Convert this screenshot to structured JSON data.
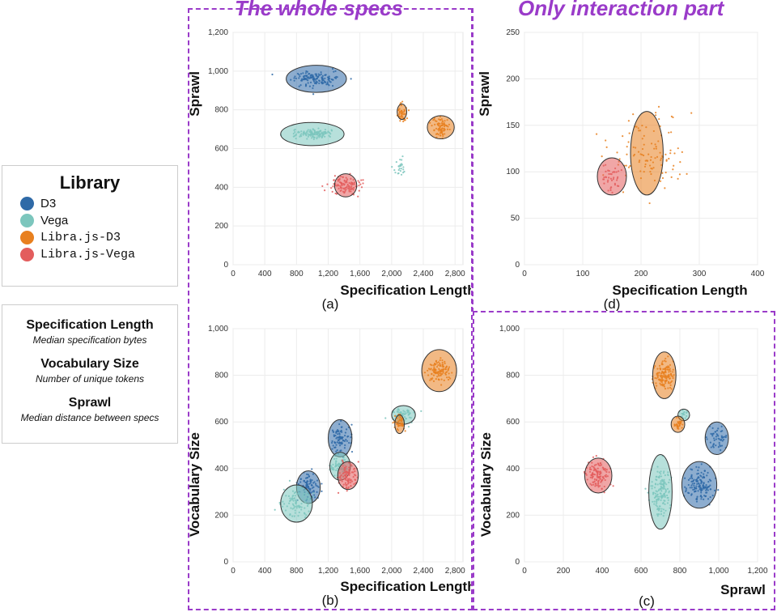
{
  "titles": {
    "left": "The whole specs",
    "right": "Only interaction part"
  },
  "legend": {
    "title": "Library",
    "items": [
      {
        "label": "D3",
        "color": "#2f6aa7",
        "mono": false
      },
      {
        "label": "Vega",
        "color": "#7cc6bd",
        "mono": false
      },
      {
        "label": "Libra.js-D3",
        "color": "#e8801f",
        "mono": true
      },
      {
        "label": "Libra.js-Vega",
        "color": "#e35d5d",
        "mono": true
      }
    ]
  },
  "definitions": [
    {
      "term": "Specification Length",
      "desc": "Median specification bytes"
    },
    {
      "term": "Vocabulary Size",
      "desc": "Number of unique tokens"
    },
    {
      "term": "Sprawl",
      "desc": "Median distance between specs"
    }
  ],
  "chart_data": [
    {
      "id": "a",
      "type": "scatter",
      "caption": "(a)",
      "xlabel": "Specification Length",
      "ylabel": "Sprawl",
      "xlim": [
        0,
        2900
      ],
      "ylim": [
        0,
        1200
      ],
      "xticks": [
        "0",
        "400",
        "800",
        "1,200",
        "1,600",
        "2,000",
        "2,400",
        "2,800"
      ],
      "xtickvals": [
        0,
        400,
        800,
        1200,
        1600,
        2000,
        2400,
        2800
      ],
      "yticks": [
        "0",
        "200",
        "400",
        "600",
        "800",
        "1,000",
        "1,200"
      ],
      "ytickvals": [
        0,
        200,
        400,
        600,
        800,
        1000,
        1200
      ],
      "series": [
        {
          "name": "D3",
          "color": "#2f6aa7",
          "clusters": [
            {
              "cx": 1050,
              "cy": 960,
              "sx": 220,
              "sy": 30,
              "n": 140,
              "rx": 380,
              "ry": 70
            }
          ]
        },
        {
          "name": "Vega",
          "color": "#7cc6bd",
          "clusters": [
            {
              "cx": 1000,
              "cy": 675,
              "sx": 230,
              "sy": 20,
              "n": 130,
              "rx": 400,
              "ry": 60
            },
            {
              "cx": 2100,
              "cy": 500,
              "sx": 60,
              "sy": 40,
              "n": 25,
              "rx": 0,
              "ry": 0
            }
          ]
        },
        {
          "name": "Libra.js-D3",
          "color": "#e8801f",
          "clusters": [
            {
              "cx": 2130,
              "cy": 790,
              "sx": 50,
              "sy": 40,
              "n": 40,
              "rx": 60,
              "ry": 40
            },
            {
              "cx": 2620,
              "cy": 710,
              "sx": 90,
              "sy": 40,
              "n": 80,
              "rx": 170,
              "ry": 60
            }
          ]
        },
        {
          "name": "Libra.js-Vega",
          "color": "#e35d5d",
          "clusters": [
            {
              "cx": 1420,
              "cy": 410,
              "sx": 150,
              "sy": 40,
              "n": 110,
              "rx": 140,
              "ry": 60
            }
          ]
        }
      ]
    },
    {
      "id": "d",
      "type": "scatter",
      "caption": "(d)",
      "xlabel": "Specification Length",
      "ylabel": "Sprawl",
      "xlim": [
        0,
        400
      ],
      "ylim": [
        0,
        250
      ],
      "xticks": [
        "0",
        "100",
        "200",
        "300",
        "400"
      ],
      "xtickvals": [
        0,
        100,
        200,
        300,
        400
      ],
      "yticks": [
        "0",
        "50",
        "100",
        "150",
        "200",
        "250"
      ],
      "ytickvals": [
        0,
        50,
        100,
        150,
        200,
        250
      ],
      "series": [
        {
          "name": "Libra.js-D3",
          "color": "#e8801f",
          "clusters": [
            {
              "cx": 210,
              "cy": 120,
              "sx": 50,
              "sy": 35,
              "n": 110,
              "rx": 28,
              "ry": 45
            }
          ]
        },
        {
          "name": "Libra.js-Vega",
          "color": "#e35d5d",
          "clusters": [
            {
              "cx": 150,
              "cy": 95,
              "sx": 15,
              "sy": 15,
              "n": 40,
              "rx": 25,
              "ry": 20
            }
          ]
        }
      ]
    },
    {
      "id": "b",
      "type": "scatter",
      "caption": "(b)",
      "xlabel": "Specification Length",
      "ylabel": "Vocabulary Size",
      "xlim": [
        0,
        2900
      ],
      "ylim": [
        0,
        1000
      ],
      "xticks": [
        "0",
        "400",
        "800",
        "1,200",
        "1,600",
        "2,000",
        "2,400",
        "2,800"
      ],
      "xtickvals": [
        0,
        400,
        800,
        1200,
        1600,
        2000,
        2400,
        2800
      ],
      "yticks": [
        "0",
        "200",
        "400",
        "600",
        "800",
        "1,000"
      ],
      "ytickvals": [
        0,
        200,
        400,
        600,
        800,
        1000
      ],
      "series": [
        {
          "name": "D3",
          "color": "#2f6aa7",
          "clusters": [
            {
              "cx": 1350,
              "cy": 530,
              "sx": 100,
              "sy": 50,
              "n": 90,
              "rx": 150,
              "ry": 80
            },
            {
              "cx": 950,
              "cy": 320,
              "sx": 100,
              "sy": 50,
              "n": 90,
              "rx": 150,
              "ry": 70
            }
          ]
        },
        {
          "name": "Vega",
          "color": "#7cc6bd",
          "clusters": [
            {
              "cx": 800,
              "cy": 250,
              "sx": 150,
              "sy": 50,
              "n": 80,
              "rx": 200,
              "ry": 80
            },
            {
              "cx": 1350,
              "cy": 410,
              "sx": 100,
              "sy": 30,
              "n": 60,
              "rx": 130,
              "ry": 60
            },
            {
              "cx": 2150,
              "cy": 630,
              "sx": 120,
              "sy": 25,
              "n": 60,
              "rx": 150,
              "ry": 40
            }
          ]
        },
        {
          "name": "Libra.js-D3",
          "color": "#e8801f",
          "clusters": [
            {
              "cx": 2600,
              "cy": 820,
              "sx": 120,
              "sy": 40,
              "n": 110,
              "rx": 220,
              "ry": 90
            },
            {
              "cx": 2100,
              "cy": 590,
              "sx": 50,
              "sy": 30,
              "n": 40,
              "rx": 60,
              "ry": 40
            }
          ]
        },
        {
          "name": "Libra.js-Vega",
          "color": "#e35d5d",
          "clusters": [
            {
              "cx": 1450,
              "cy": 370,
              "sx": 100,
              "sy": 50,
              "n": 90,
              "rx": 130,
              "ry": 60
            }
          ]
        }
      ]
    },
    {
      "id": "c",
      "type": "scatter",
      "caption": "(c)",
      "xlabel": "Sprawl",
      "ylabel": "Vocabulary Size",
      "xlim": [
        0,
        1200
      ],
      "ylim": [
        0,
        1000
      ],
      "xticks": [
        "0",
        "200",
        "400",
        "600",
        "800",
        "1,000",
        "1,200"
      ],
      "xtickvals": [
        0,
        200,
        400,
        600,
        800,
        1000,
        1200
      ],
      "yticks": [
        "0",
        "200",
        "400",
        "600",
        "800",
        "1,000"
      ],
      "ytickvals": [
        0,
        200,
        400,
        600,
        800,
        1000
      ],
      "series": [
        {
          "name": "D3",
          "color": "#2f6aa7",
          "clusters": [
            {
              "cx": 900,
              "cy": 330,
              "sx": 60,
              "sy": 60,
              "n": 140,
              "rx": 90,
              "ry": 100
            },
            {
              "cx": 990,
              "cy": 530,
              "sx": 40,
              "sy": 40,
              "n": 50,
              "rx": 60,
              "ry": 70
            }
          ]
        },
        {
          "name": "Vega",
          "color": "#7cc6bd",
          "clusters": [
            {
              "cx": 700,
              "cy": 300,
              "sx": 40,
              "sy": 90,
              "n": 150,
              "rx": 60,
              "ry": 160
            },
            {
              "cx": 820,
              "cy": 630,
              "sx": 20,
              "sy": 15,
              "n": 15,
              "rx": 30,
              "ry": 25
            }
          ]
        },
        {
          "name": "Libra.js-D3",
          "color": "#e8801f",
          "clusters": [
            {
              "cx": 720,
              "cy": 800,
              "sx": 40,
              "sy": 50,
              "n": 130,
              "rx": 60,
              "ry": 100
            },
            {
              "cx": 790,
              "cy": 590,
              "sx": 20,
              "sy": 20,
              "n": 30,
              "rx": 35,
              "ry": 35
            }
          ]
        },
        {
          "name": "Libra.js-Vega",
          "color": "#e35d5d",
          "clusters": [
            {
              "cx": 380,
              "cy": 370,
              "sx": 50,
              "sy": 50,
              "n": 120,
              "rx": 70,
              "ry": 75
            }
          ]
        }
      ]
    }
  ]
}
